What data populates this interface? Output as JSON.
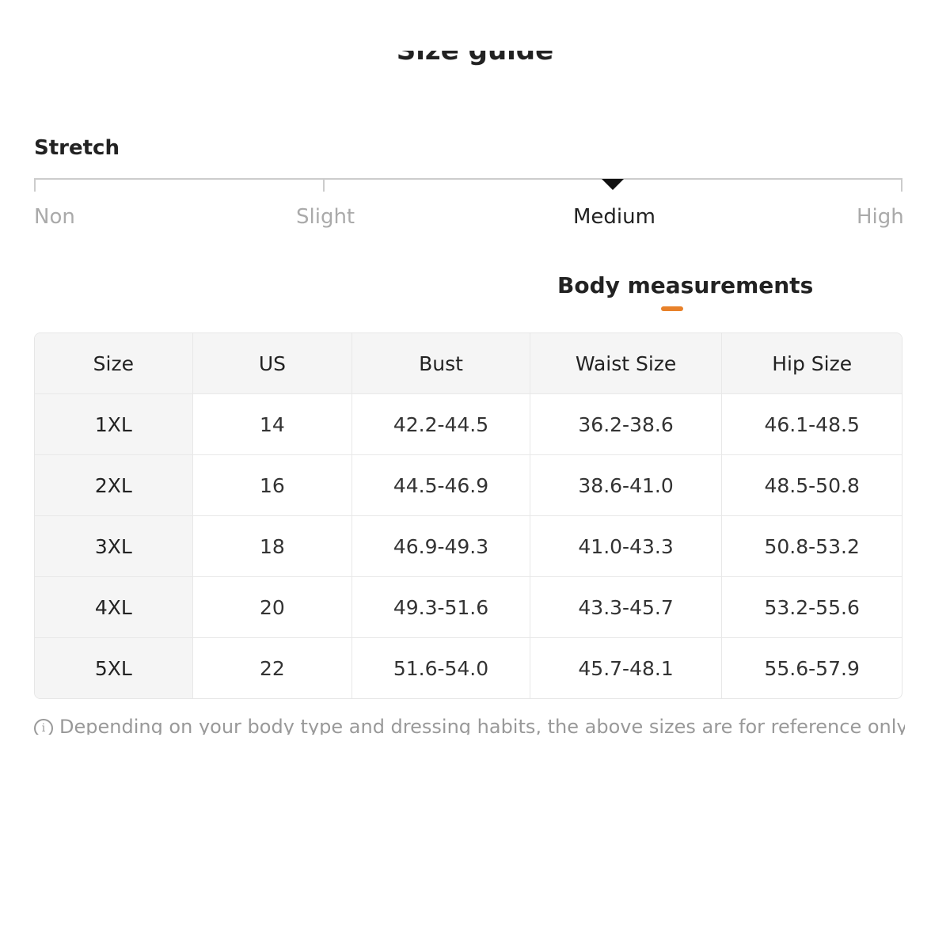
{
  "title": "Size guide",
  "stretch": {
    "label": "Stretch",
    "levels": [
      "Non",
      "Slight",
      "Medium",
      "High"
    ],
    "selected": "Medium"
  },
  "tab": {
    "label": "Body measurements",
    "accent_color": "#e8812a"
  },
  "table": {
    "headers": [
      "Size",
      "US",
      "Bust",
      "Waist Size",
      "Hip Size"
    ],
    "rows": [
      [
        "1XL",
        "14",
        "42.2-44.5",
        "36.2-38.6",
        "46.1-48.5"
      ],
      [
        "2XL",
        "16",
        "44.5-46.9",
        "38.6-41.0",
        "48.5-50.8"
      ],
      [
        "3XL",
        "18",
        "46.9-49.3",
        "41.0-43.3",
        "50.8-53.2"
      ],
      [
        "4XL",
        "20",
        "49.3-51.6",
        "43.3-45.7",
        "53.2-55.6"
      ],
      [
        "5XL",
        "22",
        "51.6-54.0",
        "45.7-48.1",
        "55.6-57.9"
      ]
    ]
  },
  "note": {
    "icon": "info-icon",
    "icon_glyph": "i",
    "text": "Depending on your body type and dressing habits, the above sizes are for reference only."
  }
}
